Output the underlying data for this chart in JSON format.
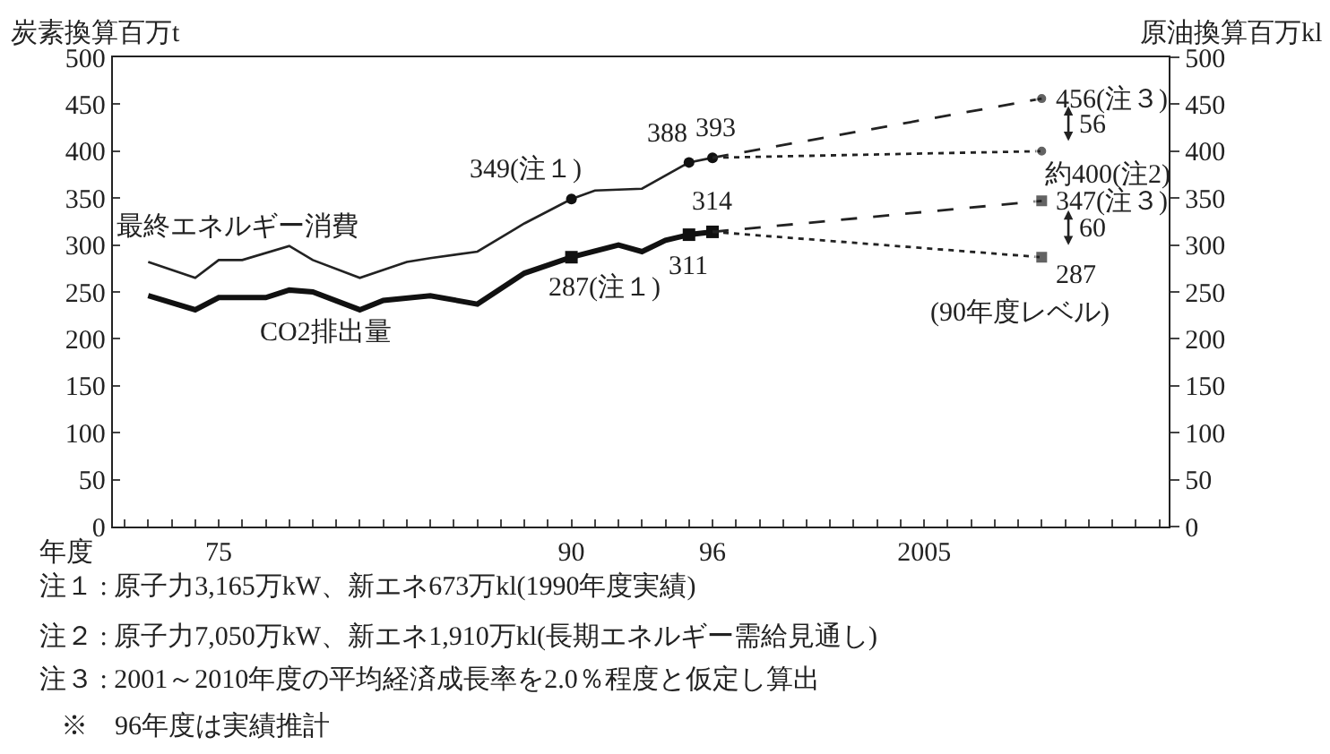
{
  "chart_data": {
    "type": "line",
    "ylabel": "炭素換算百万t",
    "y2label": "原油換算百万kl",
    "xlabel": "年度",
    "xlim": [
      1970.5,
      2015.4
    ],
    "xticks": [
      {
        "value": 1971,
        "label": null
      },
      {
        "value": 1972,
        "label": null
      },
      {
        "value": 1973,
        "label": null
      },
      {
        "value": 1974,
        "label": null
      },
      {
        "value": 1975,
        "label": "75"
      },
      {
        "value": 1976,
        "label": null
      },
      {
        "value": 1977,
        "label": null
      },
      {
        "value": 1978,
        "label": null
      },
      {
        "value": 1979,
        "label": null
      },
      {
        "value": 1980,
        "label": null
      },
      {
        "value": 1981,
        "label": null
      },
      {
        "value": 1982,
        "label": null
      },
      {
        "value": 1983,
        "label": null
      },
      {
        "value": 1984,
        "label": null
      },
      {
        "value": 1985,
        "label": null
      },
      {
        "value": 1986,
        "label": null
      },
      {
        "value": 1987,
        "label": null
      },
      {
        "value": 1988,
        "label": null
      },
      {
        "value": 1989,
        "label": null
      },
      {
        "value": 1990,
        "label": "90"
      },
      {
        "value": 1991,
        "label": null
      },
      {
        "value": 1992,
        "label": null
      },
      {
        "value": 1993,
        "label": null
      },
      {
        "value": 1994,
        "label": null
      },
      {
        "value": 1995,
        "label": null
      },
      {
        "value": 1996,
        "label": "96"
      },
      {
        "value": 1997,
        "label": null
      },
      {
        "value": 1998,
        "label": null
      },
      {
        "value": 1999,
        "label": null
      },
      {
        "value": 2000,
        "label": null
      },
      {
        "value": 2001,
        "label": null
      },
      {
        "value": 2002,
        "label": null
      },
      {
        "value": 2003,
        "label": null
      },
      {
        "value": 2004,
        "label": null
      },
      {
        "value": 2005,
        "label": "2005"
      },
      {
        "value": 2006,
        "label": null
      },
      {
        "value": 2007,
        "label": null
      },
      {
        "value": 2008,
        "label": null
      },
      {
        "value": 2009,
        "label": null
      },
      {
        "value": 2010,
        "label": null
      },
      {
        "value": 2011,
        "label": null
      },
      {
        "value": 2012,
        "label": null
      },
      {
        "value": 2013,
        "label": null
      },
      {
        "value": 2014,
        "label": null
      },
      {
        "value": 2015,
        "label": null
      }
    ],
    "ylim": [
      0,
      500
    ],
    "yticks": [
      0,
      50,
      100,
      150,
      200,
      250,
      300,
      350,
      400,
      450,
      500
    ],
    "y2lim": [
      0,
      500
    ],
    "y2ticks": [
      0,
      50,
      100,
      150,
      200,
      250,
      300,
      350,
      400,
      450,
      500
    ],
    "legend": false,
    "marker": "none",
    "line_style": "solid",
    "series": [
      {
        "name": "最終エネルギー消費",
        "color": "#222222",
        "axis": "y2",
        "x": [
          1972,
          1974,
          1975,
          1976,
          1978,
          1979,
          1981,
          1983,
          1984,
          1986,
          1988,
          1990,
          1991,
          1993,
          1995,
          1996
        ],
        "values": [
          282,
          265,
          284,
          284,
          299,
          284,
          265,
          282,
          286,
          293,
          323,
          349,
          358,
          360,
          388,
          393
        ]
      },
      {
        "name": "CO2排出量",
        "color": "#111111",
        "x": [
          1972,
          1974,
          1975,
          1977,
          1978,
          1979,
          1981,
          1982,
          1984,
          1986,
          1988,
          1990,
          1992,
          1993,
          1994,
          1995,
          1996
        ],
        "values": [
          246,
          231,
          244,
          244,
          252,
          250,
          231,
          241,
          246,
          237,
          270,
          287,
          300,
          293,
          305,
          311,
          314
        ]
      },
      {
        "type": "scatter",
        "marker": "circle",
        "color": "#111111",
        "axis": "y2",
        "x": [
          1990,
          1995,
          1996
        ],
        "values": [
          349,
          388,
          393
        ]
      },
      {
        "type": "scatter",
        "marker": "square",
        "color": "#111111",
        "x": [
          1990,
          1995,
          1996
        ],
        "values": [
          287,
          311,
          314
        ]
      },
      {
        "type": "line",
        "marker": "circle",
        "line_style": "dashed",
        "color": "#222222",
        "axis": "y2",
        "x": [
          1996,
          2010
        ],
        "values": [
          393,
          456
        ]
      },
      {
        "type": "line",
        "marker": "circle",
        "line_style": "dotted",
        "color": "#222222",
        "axis": "y2",
        "x": [
          1996,
          2010
        ],
        "values": [
          393,
          400
        ]
      },
      {
        "type": "line",
        "marker": "square",
        "line_style": "dashed",
        "color": "#222222",
        "x": [
          1996,
          2010
        ],
        "values": [
          314,
          347
        ]
      },
      {
        "type": "line",
        "marker": "square",
        "line_style": "dotted",
        "color": "#222222",
        "x": [
          1996,
          2010
        ],
        "values": [
          314,
          287
        ]
      }
    ],
    "annotations": [
      {
        "text": "349(注１)",
        "x": 1990,
        "y": 349
      },
      {
        "text": "388",
        "x": 1995,
        "y": 388
      },
      {
        "text": "393",
        "x": 1996,
        "y": 393
      },
      {
        "text": "456(注３)",
        "x": 2010,
        "y": 456
      },
      {
        "text": "約400(注2)",
        "x": 2010,
        "y": 400
      },
      "56",
      {
        "text": "287(注１)",
        "x": 1990,
        "y": 287
      },
      {
        "text": "311",
        "x": 1995,
        "y": 311
      },
      {
        "text": "314",
        "x": 1996,
        "y": 314
      },
      {
        "text": "347(注３)",
        "x": 2010,
        "y": 347
      },
      "60",
      {
        "text": "287",
        "x": 2010,
        "y": 287
      },
      {
        "text": "(90年度レベル)",
        "x": 2010,
        "y": 287
      },
      "注１ : 原子力3,165万kW、新エネ673万kl(1990年度実績)",
      "注２ : 原子力7,050万kW、新エネ1,910万kl(長期エネルギー需給見通し)",
      "注３ : 2001～2010年度の平均経済成長率を2.0％程度と仮定し算出",
      "※　96年度は実績推計"
    ]
  }
}
